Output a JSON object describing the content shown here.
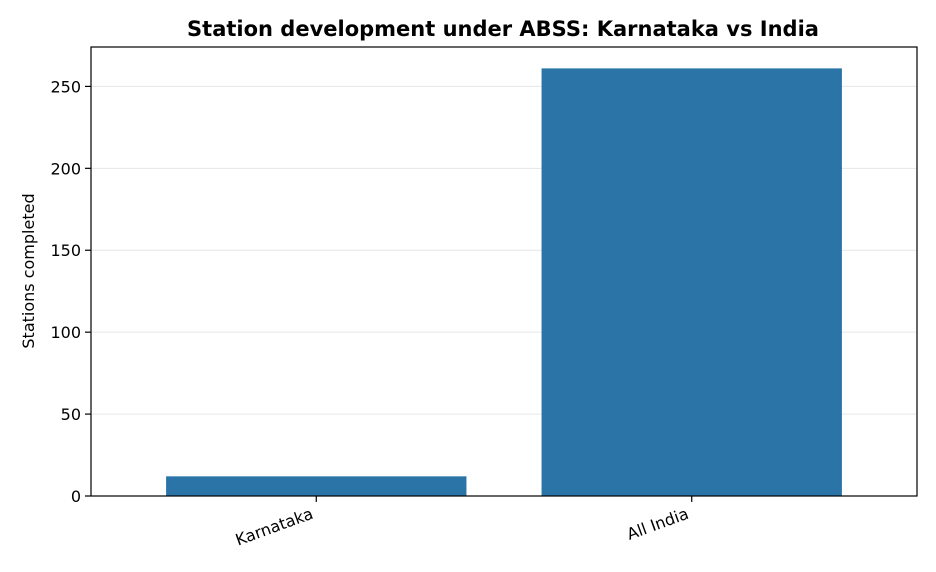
{
  "chart_data": {
    "type": "bar",
    "title": "Station development under ABSS: Karnataka vs India",
    "xlabel": "",
    "ylabel": "Stations completed",
    "categories": [
      "Karnataka",
      "All India"
    ],
    "values": [
      12,
      261
    ],
    "ylim": [
      0,
      274.05
    ],
    "yticks": [
      0,
      50,
      100,
      150,
      200,
      250
    ],
    "grid": true,
    "legend": "none",
    "colors": {
      "bar": "#2a74a8",
      "grid": "#e6e6e6",
      "axis": "#000000"
    }
  }
}
